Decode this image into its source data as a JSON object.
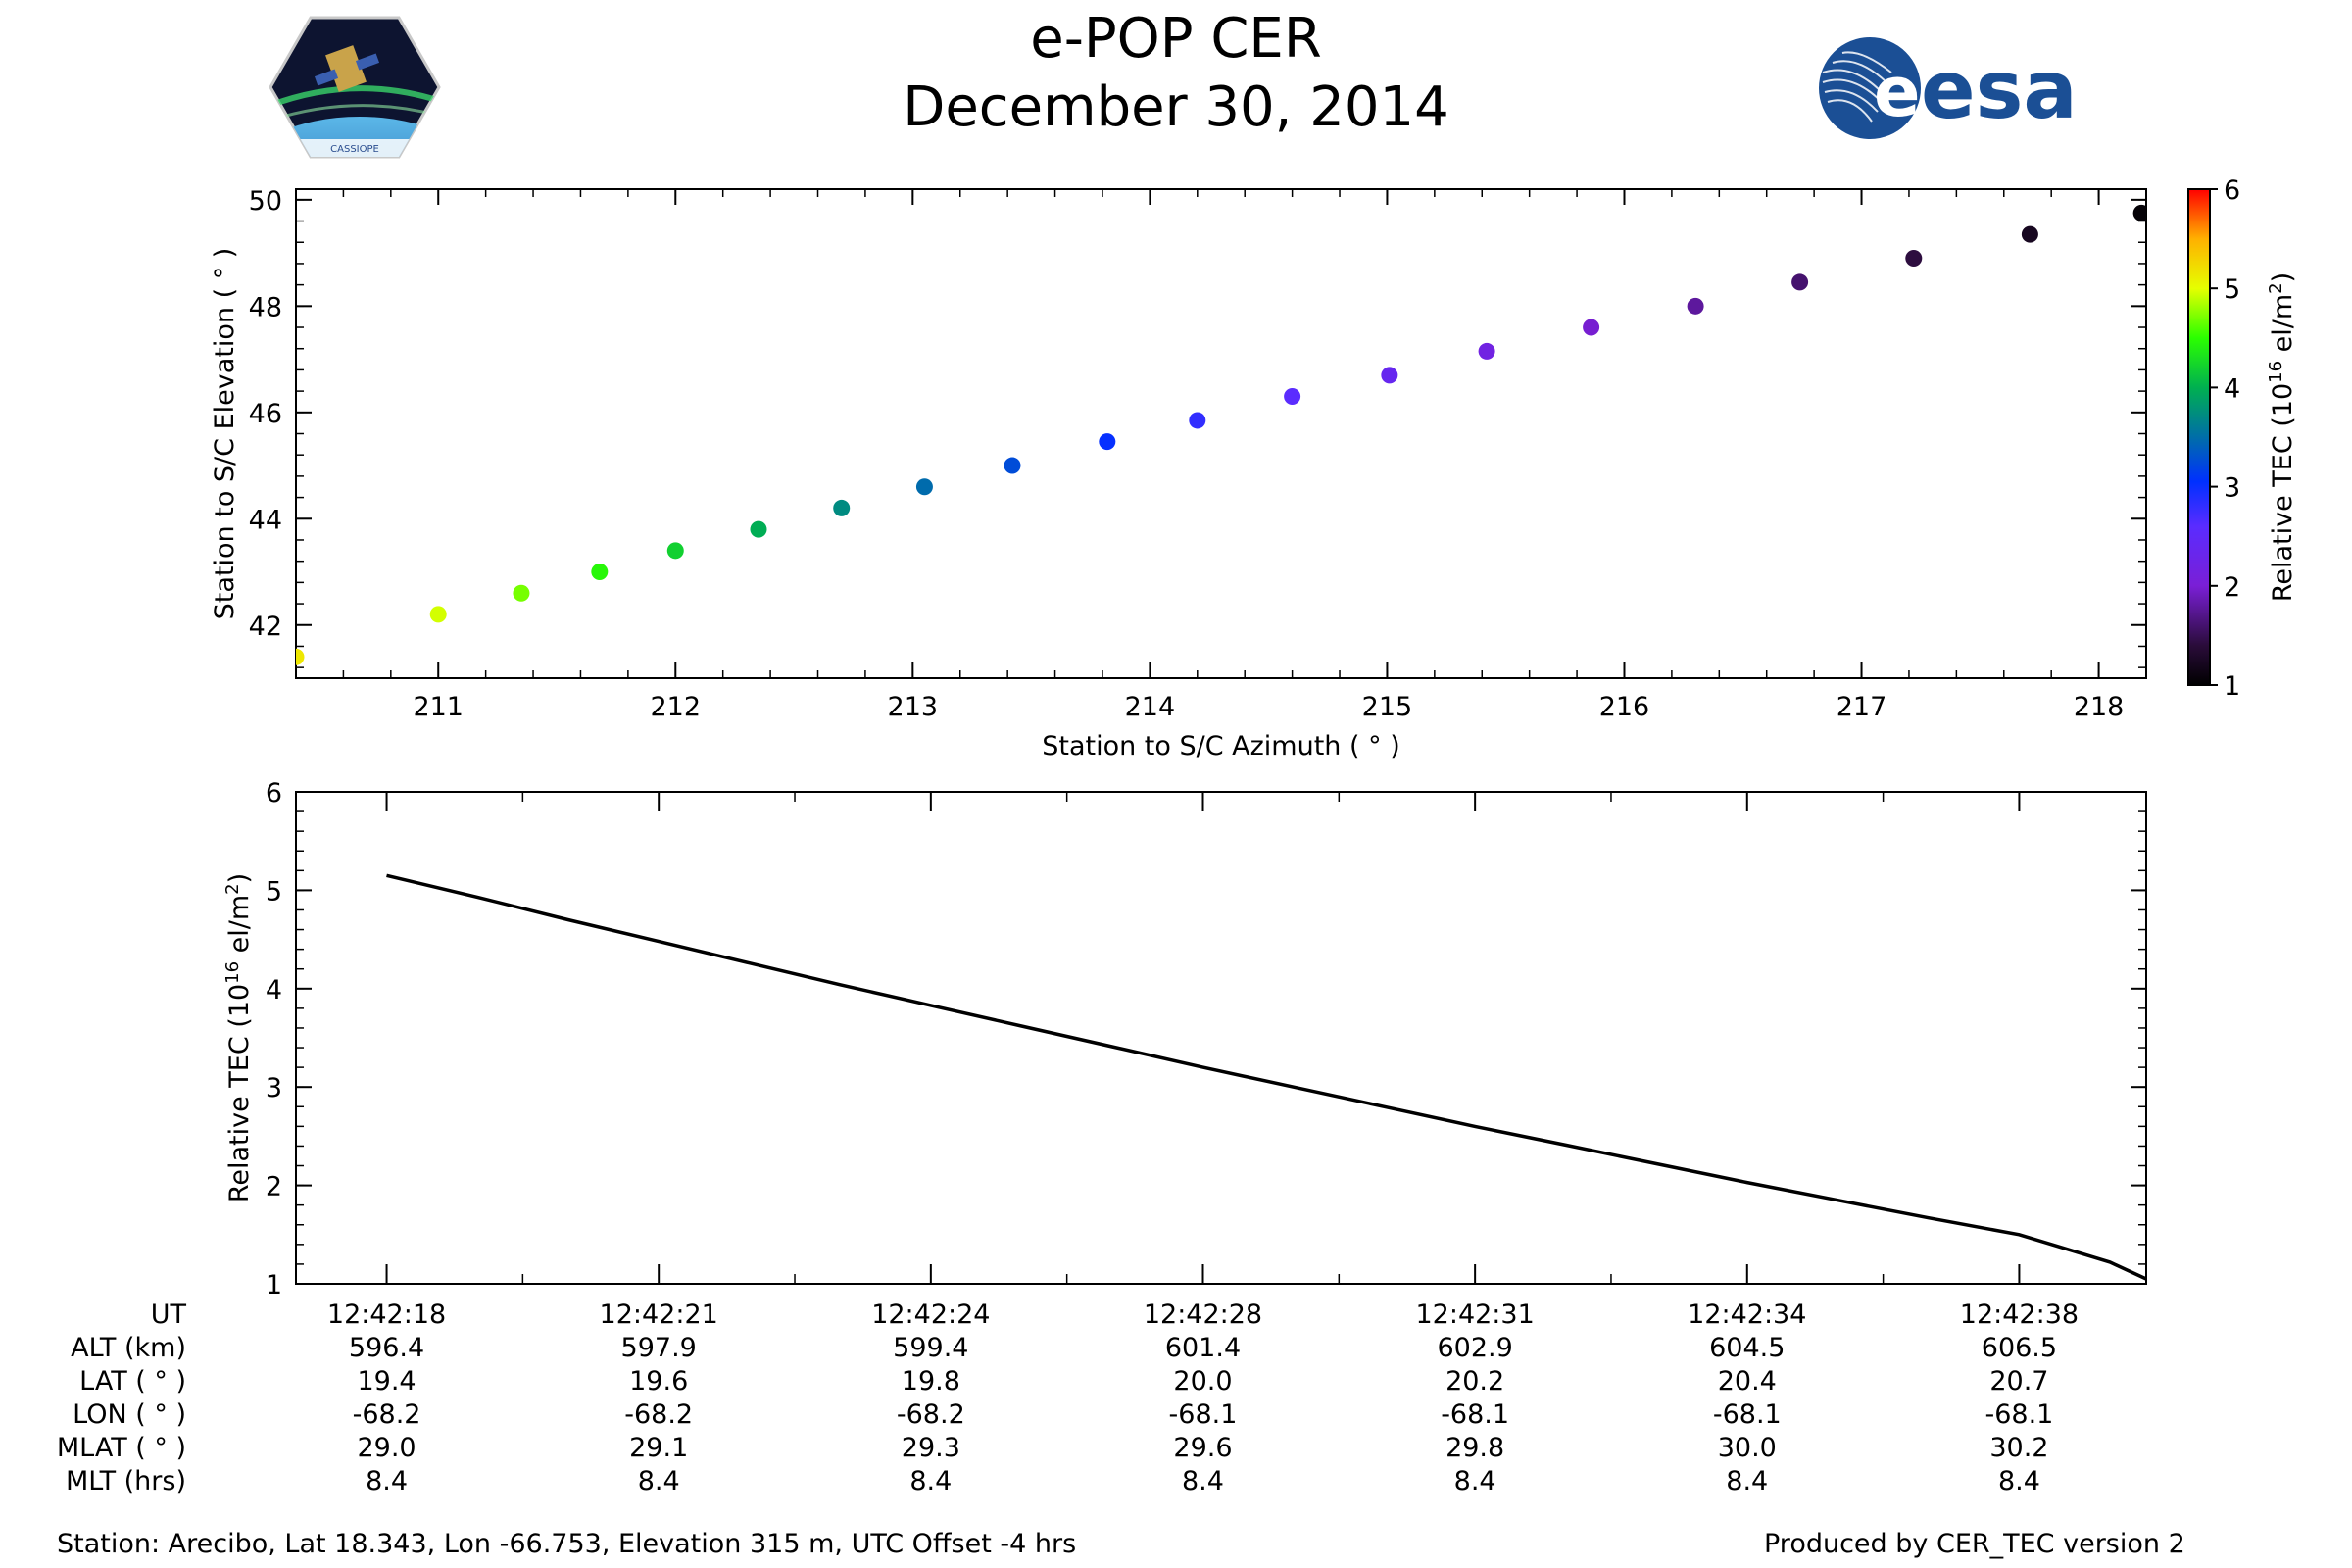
{
  "header": {
    "title": "e-POP CER",
    "date": "December 30, 2014",
    "logo_right_text": "esa",
    "logo_left_text": "CASSIOPE"
  },
  "chart_data": [
    {
      "type": "scatter",
      "xlabel": "Station to S/C Azimuth ( ° )",
      "ylabel": "Station to S/C Elevation ( ° )",
      "xlim": [
        210.4,
        218.2
      ],
      "ylim": [
        41.0,
        50.2
      ],
      "xticks": [
        211,
        212,
        213,
        214,
        215,
        216,
        217,
        218
      ],
      "yticks": [
        42,
        44,
        46,
        48,
        50
      ],
      "x": [
        210.4,
        211.0,
        211.35,
        211.68,
        212.0,
        212.35,
        212.7,
        213.05,
        213.42,
        213.82,
        214.2,
        214.6,
        215.01,
        215.42,
        215.86,
        216.3,
        216.74,
        217.22,
        217.71,
        218.18
      ],
      "y": [
        41.4,
        42.2,
        42.6,
        43.0,
        43.4,
        43.8,
        44.2,
        44.6,
        45.0,
        45.45,
        45.85,
        46.3,
        46.7,
        47.15,
        47.6,
        48.0,
        48.45,
        48.9,
        49.35,
        49.75
      ],
      "tec": [
        5.15,
        4.95,
        4.7,
        4.45,
        4.2,
        3.98,
        3.72,
        3.48,
        3.25,
        3.02,
        2.8,
        2.58,
        2.37,
        2.17,
        1.98,
        1.78,
        1.6,
        1.42,
        1.22,
        1.05
      ],
      "colorbar": {
        "label_main": "Relative TEC (10",
        "label_exp": "16",
        "label_unit": " el/m",
        "label_sq": "2",
        "label_end": ")",
        "min": 1,
        "max": 6,
        "ticks": [
          1,
          2,
          3,
          4,
          5,
          6
        ]
      }
    },
    {
      "type": "line",
      "ylabel_main": "Relative TEC (10",
      "ylabel_exp": "16",
      "ylabel_unit": " el/m",
      "ylabel_sq": "2",
      "ylabel_end": ")",
      "xlim": [
        -1.0,
        19.4
      ],
      "ylim": [
        1,
        6
      ],
      "yticks": [
        1,
        2,
        3,
        4,
        5,
        6
      ],
      "x": [
        0,
        1,
        2,
        3,
        4,
        5,
        6,
        7,
        8,
        9,
        10,
        11,
        12,
        13,
        14,
        15,
        16,
        17,
        18,
        19,
        19.4
      ],
      "values": [
        5.15,
        4.93,
        4.7,
        4.48,
        4.26,
        4.04,
        3.83,
        3.62,
        3.41,
        3.2,
        3.0,
        2.8,
        2.6,
        2.41,
        2.22,
        2.03,
        1.85,
        1.67,
        1.5,
        1.22,
        1.05
      ],
      "major_xticks": [
        0,
        3,
        6,
        9,
        12,
        15,
        18
      ]
    }
  ],
  "stats_table": {
    "row_labels": [
      "UT",
      "ALT (km)",
      "LAT ( ° )",
      "LON ( ° )",
      "MLAT ( ° )",
      "MLT (hrs)"
    ],
    "columns": [
      [
        "12:42:18",
        "596.4",
        "19.4",
        "-68.2",
        "29.0",
        "8.4"
      ],
      [
        "12:42:21",
        "597.9",
        "19.6",
        "-68.2",
        "29.1",
        "8.4"
      ],
      [
        "12:42:24",
        "599.4",
        "19.8",
        "-68.2",
        "29.3",
        "8.4"
      ],
      [
        "12:42:28",
        "601.4",
        "20.0",
        "-68.1",
        "29.6",
        "8.4"
      ],
      [
        "12:42:31",
        "602.9",
        "20.2",
        "-68.1",
        "29.8",
        "8.4"
      ],
      [
        "12:42:34",
        "604.5",
        "20.4",
        "-68.1",
        "30.0",
        "8.4"
      ],
      [
        "12:42:38",
        "606.5",
        "20.7",
        "-68.1",
        "30.2",
        "8.4"
      ]
    ]
  },
  "footer": {
    "station": "Station: Arecibo, Lat 18.343, Lon -66.753, Elevation 315 m, UTC Offset -4 hrs",
    "produced": "Produced by CER_TEC version 2"
  }
}
